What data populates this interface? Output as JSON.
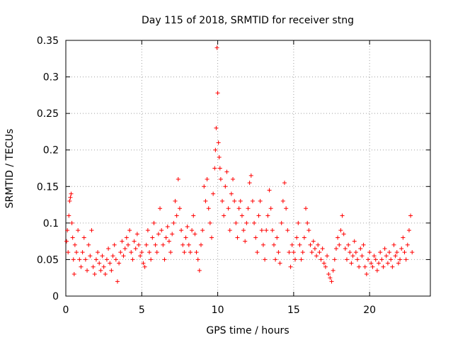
{
  "chart_data": {
    "type": "scatter",
    "title": "Day 115 of 2018, SRMTID for receiver stng",
    "xlabel": "GPS time / hours",
    "ylabel": "SRMTID / TECUs",
    "xlim": [
      0,
      24
    ],
    "ylim": [
      0,
      0.35
    ],
    "xticks": [
      0,
      5,
      10,
      15,
      20
    ],
    "xtick_labels": [
      "0",
      "5",
      "10",
      "15",
      "20"
    ],
    "yticks": [
      0,
      0.05,
      0.1,
      0.15,
      0.2,
      0.25,
      0.3,
      0.35
    ],
    "ytick_labels": [
      "0",
      "0.05",
      "0.1",
      "0.15",
      "0.2",
      "0.25",
      "0.3",
      "0.35"
    ],
    "grid": true,
    "marker": "+",
    "color": "#ff0000",
    "series": [
      {
        "name": "SRMTID",
        "points": [
          [
            0.05,
            0.075
          ],
          [
            0.1,
            0.09
          ],
          [
            0.15,
            0.06
          ],
          [
            0.2,
            0.11
          ],
          [
            0.25,
            0.13
          ],
          [
            0.3,
            0.135
          ],
          [
            0.35,
            0.14
          ],
          [
            0.4,
            0.1
          ],
          [
            0.45,
            0.08
          ],
          [
            0.5,
            0.05
          ],
          [
            0.55,
            0.03
          ],
          [
            0.6,
            0.07
          ],
          [
            0.7,
            0.06
          ],
          [
            0.8,
            0.09
          ],
          [
            0.9,
            0.05
          ],
          [
            1.0,
            0.04
          ],
          [
            1.1,
            0.06
          ],
          [
            1.2,
            0.08
          ],
          [
            1.3,
            0.05
          ],
          [
            1.4,
            0.035
          ],
          [
            1.5,
            0.07
          ],
          [
            1.6,
            0.055
          ],
          [
            1.7,
            0.09
          ],
          [
            1.8,
            0.04
          ],
          [
            1.9,
            0.03
          ],
          [
            2.0,
            0.05
          ],
          [
            2.1,
            0.06
          ],
          [
            2.2,
            0.045
          ],
          [
            2.3,
            0.035
          ],
          [
            2.4,
            0.055
          ],
          [
            2.5,
            0.04
          ],
          [
            2.6,
            0.03
          ],
          [
            2.7,
            0.05
          ],
          [
            2.8,
            0.065
          ],
          [
            2.9,
            0.045
          ],
          [
            3.0,
            0.035
          ],
          [
            3.1,
            0.055
          ],
          [
            3.2,
            0.07
          ],
          [
            3.3,
            0.05
          ],
          [
            3.4,
            0.02
          ],
          [
            3.5,
            0.045
          ],
          [
            3.6,
            0.06
          ],
          [
            3.7,
            0.075
          ],
          [
            3.8,
            0.055
          ],
          [
            3.9,
            0.065
          ],
          [
            4.0,
            0.08
          ],
          [
            4.1,
            0.07
          ],
          [
            4.2,
            0.09
          ],
          [
            4.3,
            0.06
          ],
          [
            4.4,
            0.05
          ],
          [
            4.5,
            0.075
          ],
          [
            4.6,
            0.065
          ],
          [
            4.7,
            0.085
          ],
          [
            4.8,
            0.07
          ],
          [
            4.9,
            0.055
          ],
          [
            5.0,
            0.06
          ],
          [
            5.1,
            0.045
          ],
          [
            5.2,
            0.04
          ],
          [
            5.3,
            0.07
          ],
          [
            5.4,
            0.09
          ],
          [
            5.5,
            0.06
          ],
          [
            5.6,
            0.05
          ],
          [
            5.7,
            0.08
          ],
          [
            5.8,
            0.1
          ],
          [
            5.9,
            0.07
          ],
          [
            6.0,
            0.06
          ],
          [
            6.1,
            0.085
          ],
          [
            6.2,
            0.12
          ],
          [
            6.3,
            0.09
          ],
          [
            6.4,
            0.07
          ],
          [
            6.5,
            0.05
          ],
          [
            6.6,
            0.08
          ],
          [
            6.7,
            0.095
          ],
          [
            6.8,
            0.075
          ],
          [
            6.9,
            0.06
          ],
          [
            7.0,
            0.085
          ],
          [
            7.1,
            0.1
          ],
          [
            7.2,
            0.13
          ],
          [
            7.3,
            0.11
          ],
          [
            7.4,
            0.16
          ],
          [
            7.5,
            0.12
          ],
          [
            7.6,
            0.09
          ],
          [
            7.7,
            0.07
          ],
          [
            7.8,
            0.06
          ],
          [
            7.9,
            0.08
          ],
          [
            8.0,
            0.095
          ],
          [
            8.1,
            0.07
          ],
          [
            8.2,
            0.06
          ],
          [
            8.3,
            0.09
          ],
          [
            8.4,
            0.11
          ],
          [
            8.5,
            0.085
          ],
          [
            8.6,
            0.06
          ],
          [
            8.7,
            0.05
          ],
          [
            8.8,
            0.035
          ],
          [
            8.9,
            0.07
          ],
          [
            9.0,
            0.09
          ],
          [
            9.1,
            0.15
          ],
          [
            9.2,
            0.13
          ],
          [
            9.3,
            0.16
          ],
          [
            9.4,
            0.12
          ],
          [
            9.5,
            0.1
          ],
          [
            9.6,
            0.08
          ],
          [
            9.7,
            0.14
          ],
          [
            9.8,
            0.175
          ],
          [
            9.85,
            0.2
          ],
          [
            9.9,
            0.23
          ],
          [
            9.95,
            0.34
          ],
          [
            10.0,
            0.278
          ],
          [
            10.05,
            0.21
          ],
          [
            10.1,
            0.19
          ],
          [
            10.15,
            0.175
          ],
          [
            10.2,
            0.16
          ],
          [
            10.3,
            0.13
          ],
          [
            10.4,
            0.11
          ],
          [
            10.5,
            0.15
          ],
          [
            10.6,
            0.17
          ],
          [
            10.7,
            0.12
          ],
          [
            10.8,
            0.09
          ],
          [
            10.9,
            0.14
          ],
          [
            11.0,
            0.16
          ],
          [
            11.1,
            0.13
          ],
          [
            11.2,
            0.1
          ],
          [
            11.3,
            0.08
          ],
          [
            11.4,
            0.12
          ],
          [
            11.5,
            0.13
          ],
          [
            11.6,
            0.11
          ],
          [
            11.7,
            0.09
          ],
          [
            11.8,
            0.075
          ],
          [
            11.9,
            0.1
          ],
          [
            12.0,
            0.12
          ],
          [
            12.1,
            0.155
          ],
          [
            12.2,
            0.165
          ],
          [
            12.3,
            0.13
          ],
          [
            12.4,
            0.1
          ],
          [
            12.5,
            0.08
          ],
          [
            12.6,
            0.06
          ],
          [
            12.7,
            0.11
          ],
          [
            12.8,
            0.13
          ],
          [
            12.9,
            0.09
          ],
          [
            13.0,
            0.07
          ],
          [
            13.1,
            0.05
          ],
          [
            13.2,
            0.09
          ],
          [
            13.3,
            0.11
          ],
          [
            13.4,
            0.145
          ],
          [
            13.5,
            0.12
          ],
          [
            13.6,
            0.09
          ],
          [
            13.7,
            0.07
          ],
          [
            13.8,
            0.05
          ],
          [
            13.9,
            0.08
          ],
          [
            14.0,
            0.06
          ],
          [
            14.1,
            0.045
          ],
          [
            14.2,
            0.1
          ],
          [
            14.3,
            0.13
          ],
          [
            14.4,
            0.155
          ],
          [
            14.5,
            0.12
          ],
          [
            14.6,
            0.09
          ],
          [
            14.7,
            0.06
          ],
          [
            14.8,
            0.04
          ],
          [
            14.9,
            0.07
          ],
          [
            15.0,
            0.06
          ],
          [
            15.1,
            0.05
          ],
          [
            15.2,
            0.08
          ],
          [
            15.3,
            0.1
          ],
          [
            15.4,
            0.07
          ],
          [
            15.5,
            0.05
          ],
          [
            15.6,
            0.06
          ],
          [
            15.7,
            0.08
          ],
          [
            15.8,
            0.12
          ],
          [
            15.9,
            0.1
          ],
          [
            16.0,
            0.09
          ],
          [
            16.1,
            0.07
          ],
          [
            16.2,
            0.06
          ],
          [
            16.3,
            0.075
          ],
          [
            16.4,
            0.065
          ],
          [
            16.5,
            0.055
          ],
          [
            16.6,
            0.07
          ],
          [
            16.7,
            0.06
          ],
          [
            16.8,
            0.05
          ],
          [
            16.9,
            0.065
          ],
          [
            17.0,
            0.045
          ],
          [
            17.1,
            0.04
          ],
          [
            17.2,
            0.055
          ],
          [
            17.3,
            0.03
          ],
          [
            17.4,
            0.025
          ],
          [
            17.5,
            0.02
          ],
          [
            17.6,
            0.035
          ],
          [
            17.7,
            0.05
          ],
          [
            17.8,
            0.065
          ],
          [
            17.9,
            0.08
          ],
          [
            18.0,
            0.07
          ],
          [
            18.1,
            0.09
          ],
          [
            18.2,
            0.11
          ],
          [
            18.3,
            0.085
          ],
          [
            18.4,
            0.065
          ],
          [
            18.5,
            0.05
          ],
          [
            18.6,
            0.07
          ],
          [
            18.7,
            0.06
          ],
          [
            18.8,
            0.045
          ],
          [
            18.9,
            0.055
          ],
          [
            19.0,
            0.075
          ],
          [
            19.1,
            0.06
          ],
          [
            19.2,
            0.05
          ],
          [
            19.3,
            0.04
          ],
          [
            19.4,
            0.065
          ],
          [
            19.5,
            0.055
          ],
          [
            19.6,
            0.07
          ],
          [
            19.7,
            0.04
          ],
          [
            19.8,
            0.03
          ],
          [
            19.9,
            0.05
          ],
          [
            20.0,
            0.06
          ],
          [
            20.1,
            0.045
          ],
          [
            20.2,
            0.04
          ],
          [
            20.3,
            0.055
          ],
          [
            20.4,
            0.05
          ],
          [
            20.5,
            0.035
          ],
          [
            20.6,
            0.045
          ],
          [
            20.7,
            0.06
          ],
          [
            20.8,
            0.05
          ],
          [
            20.9,
            0.04
          ],
          [
            21.0,
            0.065
          ],
          [
            21.1,
            0.055
          ],
          [
            21.2,
            0.045
          ],
          [
            21.3,
            0.06
          ],
          [
            21.4,
            0.05
          ],
          [
            21.5,
            0.04
          ],
          [
            21.6,
            0.07
          ],
          [
            21.7,
            0.055
          ],
          [
            21.8,
            0.06
          ],
          [
            21.9,
            0.045
          ],
          [
            22.0,
            0.05
          ],
          [
            22.1,
            0.065
          ],
          [
            22.2,
            0.08
          ],
          [
            22.3,
            0.06
          ],
          [
            22.4,
            0.05
          ],
          [
            22.5,
            0.07
          ],
          [
            22.6,
            0.09
          ],
          [
            22.7,
            0.11
          ],
          [
            22.8,
            0.06
          ]
        ]
      }
    ]
  }
}
